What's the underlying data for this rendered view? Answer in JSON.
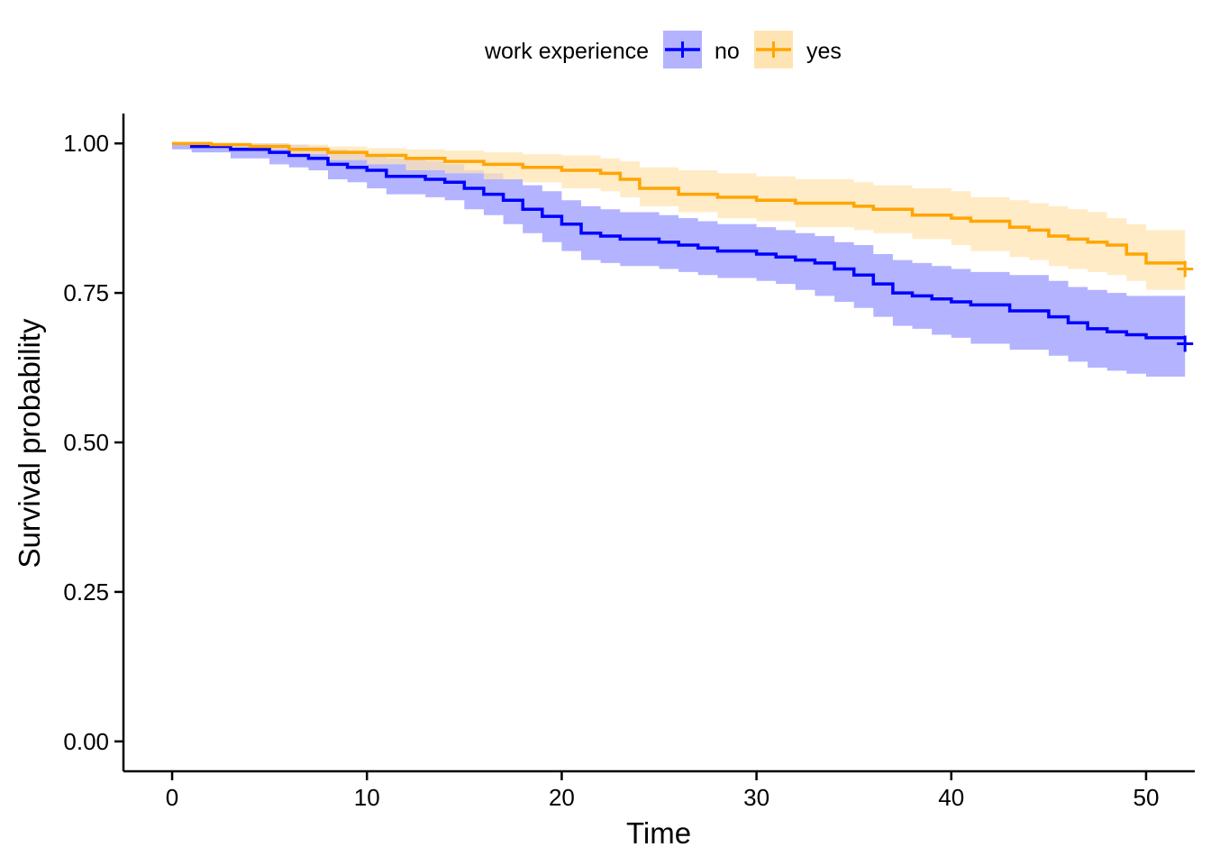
{
  "chart_data": {
    "type": "line",
    "title": "",
    "xlabel": "Time",
    "ylabel": "Survival probability",
    "xlim": [
      -2.5,
      52.5
    ],
    "ylim": [
      -0.05,
      1.05
    ],
    "x_ticks": [
      0,
      10,
      20,
      30,
      40,
      50
    ],
    "y_ticks": [
      0,
      0.25,
      0.5,
      0.75,
      1.0
    ],
    "x_tick_labels": [
      "0",
      "10",
      "20",
      "30",
      "40",
      "50"
    ],
    "y_tick_labels": [
      "0.00",
      "0.25",
      "0.50",
      "0.75",
      "1.00"
    ],
    "grid": false,
    "legend": {
      "title": "work experience",
      "position": "top",
      "entries": [
        "no",
        "yes"
      ]
    },
    "series": [
      {
        "name": "no",
        "color": "#0000FF",
        "band_color": "#B3B3FF",
        "steps": [
          [
            0,
            1.0
          ],
          [
            1,
            0.995
          ],
          [
            3,
            0.99
          ],
          [
            5,
            0.985
          ],
          [
            6,
            0.98
          ],
          [
            7,
            0.975
          ],
          [
            8,
            0.965
          ],
          [
            9,
            0.96
          ],
          [
            10,
            0.955
          ],
          [
            11,
            0.945
          ],
          [
            13,
            0.94
          ],
          [
            14,
            0.935
          ],
          [
            15,
            0.925
          ],
          [
            16,
            0.915
          ],
          [
            17,
            0.905
          ],
          [
            18,
            0.89
          ],
          [
            19,
            0.878
          ],
          [
            20,
            0.865
          ],
          [
            21,
            0.85
          ],
          [
            22,
            0.845
          ],
          [
            23,
            0.84
          ],
          [
            25,
            0.835
          ],
          [
            26,
            0.83
          ],
          [
            27,
            0.825
          ],
          [
            28,
            0.82
          ],
          [
            30,
            0.815
          ],
          [
            31,
            0.81
          ],
          [
            32,
            0.805
          ],
          [
            33,
            0.8
          ],
          [
            34,
            0.79
          ],
          [
            35,
            0.78
          ],
          [
            36,
            0.765
          ],
          [
            37,
            0.75
          ],
          [
            38,
            0.745
          ],
          [
            39,
            0.74
          ],
          [
            40,
            0.735
          ],
          [
            41,
            0.73
          ],
          [
            43,
            0.72
          ],
          [
            45,
            0.71
          ],
          [
            46,
            0.7
          ],
          [
            47,
            0.69
          ],
          [
            48,
            0.685
          ],
          [
            49,
            0.68
          ],
          [
            50,
            0.675
          ],
          [
            52,
            0.675
          ]
        ],
        "lower": [
          [
            0,
            0.99
          ],
          [
            1,
            0.985
          ],
          [
            3,
            0.975
          ],
          [
            5,
            0.965
          ],
          [
            6,
            0.96
          ],
          [
            7,
            0.955
          ],
          [
            8,
            0.94
          ],
          [
            9,
            0.935
          ],
          [
            10,
            0.925
          ],
          [
            11,
            0.915
          ],
          [
            13,
            0.91
          ],
          [
            14,
            0.905
          ],
          [
            15,
            0.89
          ],
          [
            16,
            0.88
          ],
          [
            17,
            0.865
          ],
          [
            18,
            0.85
          ],
          [
            19,
            0.835
          ],
          [
            20,
            0.82
          ],
          [
            21,
            0.805
          ],
          [
            22,
            0.8
          ],
          [
            23,
            0.795
          ],
          [
            25,
            0.79
          ],
          [
            26,
            0.785
          ],
          [
            27,
            0.78
          ],
          [
            28,
            0.775
          ],
          [
            30,
            0.77
          ],
          [
            31,
            0.765
          ],
          [
            32,
            0.755
          ],
          [
            33,
            0.745
          ],
          [
            34,
            0.735
          ],
          [
            35,
            0.725
          ],
          [
            36,
            0.71
          ],
          [
            37,
            0.695
          ],
          [
            38,
            0.69
          ],
          [
            39,
            0.68
          ],
          [
            40,
            0.675
          ],
          [
            41,
            0.665
          ],
          [
            43,
            0.655
          ],
          [
            45,
            0.645
          ],
          [
            46,
            0.635
          ],
          [
            47,
            0.625
          ],
          [
            48,
            0.62
          ],
          [
            49,
            0.615
          ],
          [
            50,
            0.61
          ],
          [
            52,
            0.61
          ]
        ],
        "upper": [
          [
            0,
            1.0
          ],
          [
            1,
            1.0
          ],
          [
            3,
            1.0
          ],
          [
            5,
            1.0
          ],
          [
            6,
            0.998
          ],
          [
            7,
            0.995
          ],
          [
            8,
            0.99
          ],
          [
            9,
            0.985
          ],
          [
            10,
            0.98
          ],
          [
            11,
            0.975
          ],
          [
            13,
            0.97
          ],
          [
            14,
            0.965
          ],
          [
            15,
            0.955
          ],
          [
            16,
            0.95
          ],
          [
            17,
            0.94
          ],
          [
            18,
            0.93
          ],
          [
            19,
            0.92
          ],
          [
            20,
            0.905
          ],
          [
            21,
            0.895
          ],
          [
            22,
            0.89
          ],
          [
            23,
            0.885
          ],
          [
            25,
            0.88
          ],
          [
            26,
            0.875
          ],
          [
            27,
            0.87
          ],
          [
            28,
            0.865
          ],
          [
            30,
            0.86
          ],
          [
            31,
            0.855
          ],
          [
            32,
            0.85
          ],
          [
            33,
            0.845
          ],
          [
            34,
            0.835
          ],
          [
            35,
            0.83
          ],
          [
            36,
            0.815
          ],
          [
            37,
            0.805
          ],
          [
            38,
            0.8
          ],
          [
            39,
            0.795
          ],
          [
            40,
            0.79
          ],
          [
            41,
            0.785
          ],
          [
            43,
            0.78
          ],
          [
            45,
            0.77
          ],
          [
            46,
            0.76
          ],
          [
            47,
            0.755
          ],
          [
            48,
            0.75
          ],
          [
            49,
            0.745
          ],
          [
            50,
            0.745
          ],
          [
            52,
            0.745
          ]
        ],
        "censor": [
          [
            52,
            0.665
          ]
        ]
      },
      {
        "name": "yes",
        "color": "#FFA500",
        "band_color": "#FFE4B3",
        "steps": [
          [
            0,
            1.0
          ],
          [
            2,
            0.998
          ],
          [
            4,
            0.995
          ],
          [
            6,
            0.99
          ],
          [
            8,
            0.985
          ],
          [
            10,
            0.98
          ],
          [
            12,
            0.975
          ],
          [
            14,
            0.97
          ],
          [
            16,
            0.965
          ],
          [
            18,
            0.96
          ],
          [
            20,
            0.955
          ],
          [
            22,
            0.95
          ],
          [
            23,
            0.94
          ],
          [
            24,
            0.925
          ],
          [
            26,
            0.915
          ],
          [
            28,
            0.91
          ],
          [
            30,
            0.905
          ],
          [
            32,
            0.9
          ],
          [
            35,
            0.895
          ],
          [
            36,
            0.89
          ],
          [
            38,
            0.88
          ],
          [
            40,
            0.875
          ],
          [
            41,
            0.87
          ],
          [
            43,
            0.86
          ],
          [
            44,
            0.855
          ],
          [
            45,
            0.845
          ],
          [
            46,
            0.84
          ],
          [
            47,
            0.835
          ],
          [
            48,
            0.83
          ],
          [
            49,
            0.815
          ],
          [
            50,
            0.8
          ],
          [
            52,
            0.8
          ]
        ],
        "lower": [
          [
            0,
            1.0
          ],
          [
            2,
            0.994
          ],
          [
            4,
            0.99
          ],
          [
            6,
            0.982
          ],
          [
            8,
            0.972
          ],
          [
            10,
            0.965
          ],
          [
            12,
            0.955
          ],
          [
            14,
            0.95
          ],
          [
            16,
            0.94
          ],
          [
            18,
            0.935
          ],
          [
            20,
            0.925
          ],
          [
            22,
            0.92
          ],
          [
            23,
            0.91
          ],
          [
            24,
            0.895
          ],
          [
            26,
            0.885
          ],
          [
            28,
            0.875
          ],
          [
            30,
            0.87
          ],
          [
            32,
            0.86
          ],
          [
            35,
            0.855
          ],
          [
            36,
            0.85
          ],
          [
            38,
            0.84
          ],
          [
            40,
            0.83
          ],
          [
            41,
            0.82
          ],
          [
            43,
            0.81
          ],
          [
            44,
            0.805
          ],
          [
            45,
            0.795
          ],
          [
            46,
            0.79
          ],
          [
            47,
            0.785
          ],
          [
            48,
            0.78
          ],
          [
            49,
            0.77
          ],
          [
            50,
            0.755
          ],
          [
            52,
            0.755
          ]
        ],
        "upper": [
          [
            0,
            1.0
          ],
          [
            2,
            1.0
          ],
          [
            4,
            1.0
          ],
          [
            6,
            0.998
          ],
          [
            8,
            0.995
          ],
          [
            10,
            0.992
          ],
          [
            12,
            0.99
          ],
          [
            14,
            0.988
          ],
          [
            16,
            0.985
          ],
          [
            18,
            0.982
          ],
          [
            20,
            0.98
          ],
          [
            22,
            0.975
          ],
          [
            23,
            0.97
          ],
          [
            24,
            0.96
          ],
          [
            26,
            0.955
          ],
          [
            28,
            0.95
          ],
          [
            30,
            0.945
          ],
          [
            32,
            0.94
          ],
          [
            35,
            0.935
          ],
          [
            36,
            0.93
          ],
          [
            38,
            0.925
          ],
          [
            40,
            0.92
          ],
          [
            41,
            0.91
          ],
          [
            43,
            0.905
          ],
          [
            44,
            0.9
          ],
          [
            45,
            0.895
          ],
          [
            46,
            0.89
          ],
          [
            47,
            0.885
          ],
          [
            48,
            0.875
          ],
          [
            49,
            0.865
          ],
          [
            50,
            0.855
          ],
          [
            52,
            0.855
          ]
        ],
        "censor": [
          [
            52,
            0.79
          ]
        ]
      }
    ]
  }
}
